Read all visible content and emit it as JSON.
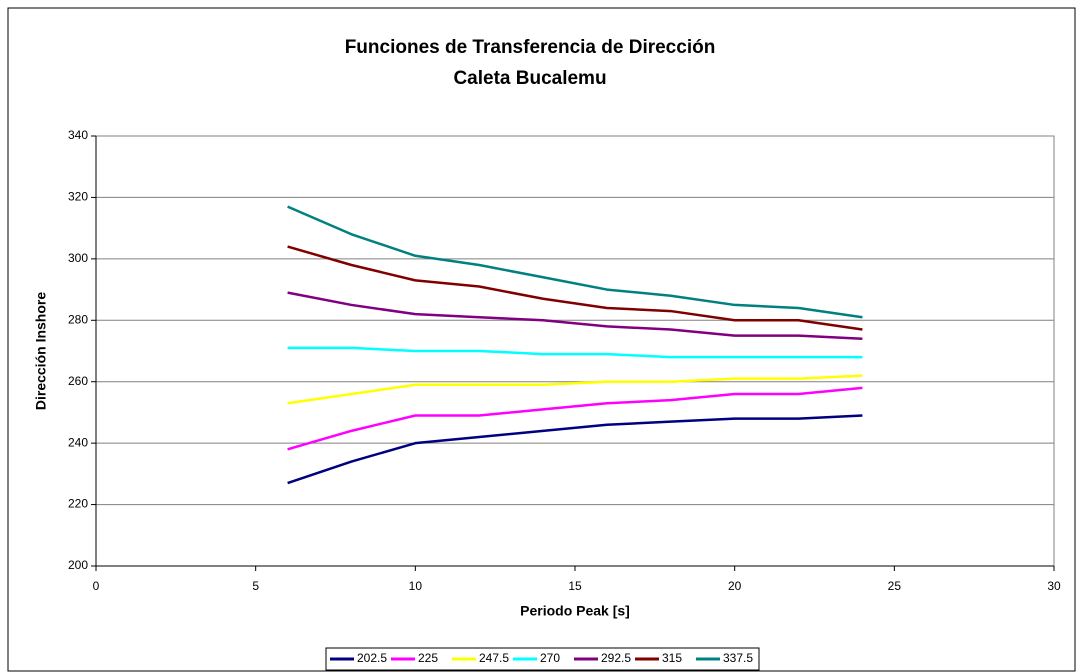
{
  "chart_data": {
    "type": "line",
    "title": "Funciones de Transferencia de Dirección",
    "subtitle": "Caleta Bucalemu",
    "x_label": "Periodo Peak [s]",
    "y_label": "Dirección Inshore",
    "x": [
      6,
      8,
      10,
      12,
      14,
      16,
      18,
      20,
      22,
      24
    ],
    "series": [
      {
        "name": "202.5",
        "color": "#000080",
        "values": [
          227,
          234,
          240,
          242,
          244,
          246,
          247,
          248,
          248,
          249
        ]
      },
      {
        "name": "225",
        "color": "#ff00ff",
        "values": [
          238,
          244,
          249,
          249,
          251,
          253,
          254,
          256,
          256,
          258
        ]
      },
      {
        "name": "247.5",
        "color": "#ffff00",
        "values": [
          253,
          256,
          259,
          259,
          259,
          260,
          260,
          261,
          261,
          262
        ]
      },
      {
        "name": "270",
        "color": "#00ffff",
        "values": [
          271,
          271,
          270,
          270,
          269,
          269,
          268,
          268,
          268,
          268
        ]
      },
      {
        "name": "292.5",
        "color": "#800080",
        "values": [
          289,
          285,
          282,
          281,
          280,
          278,
          277,
          275,
          275,
          274
        ]
      },
      {
        "name": "315",
        "color": "#800000",
        "values": [
          304,
          298,
          293,
          291,
          287,
          284,
          283,
          280,
          280,
          277
        ]
      },
      {
        "name": "337.5",
        "color": "#008080",
        "values": [
          317,
          308,
          301,
          298,
          294,
          290,
          288,
          285,
          284,
          281
        ]
      }
    ],
    "xlim": [
      0,
      30
    ],
    "xticks": [
      0,
      5,
      10,
      15,
      20,
      25,
      30
    ],
    "ylim": [
      200,
      340
    ],
    "yticks": [
      200,
      220,
      240,
      260,
      280,
      300,
      320,
      340
    ],
    "grid": true,
    "legend": "bottom"
  }
}
